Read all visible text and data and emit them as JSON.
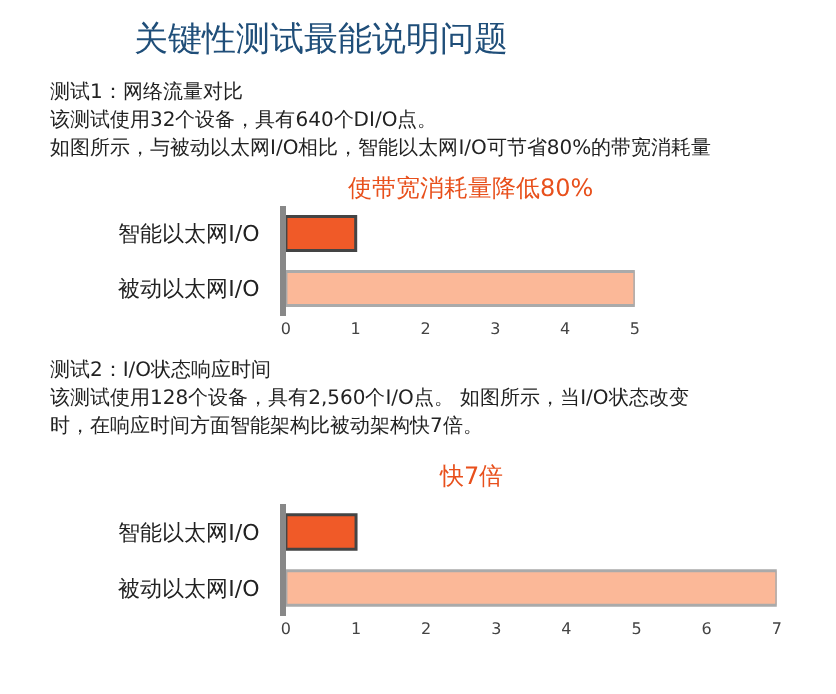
{
  "chart_data": [
    {
      "type": "bar",
      "orientation": "horizontal",
      "title": "使带宽消耗量降低80%",
      "annotations": [
        "关键性测试最能说明问题",
        "测试1：网络流量对比",
        "该测试使用32个设备，具有640个DI/O点。",
        "如图所示，与被动以太网I/O相比，智能以太网I/O可节省80%的带宽消耗量"
      ],
      "categories": [
        "智能以太网I/O",
        "被动以太网I/O"
      ],
      "values": [
        1,
        5
      ],
      "colors": [
        "#f05a28",
        "#fbb898"
      ],
      "xlim": [
        0,
        5
      ],
      "xticks": [
        0,
        1,
        2,
        3,
        4,
        5
      ]
    },
    {
      "type": "bar",
      "orientation": "horizontal",
      "title": "快7倍",
      "annotations": [
        "测试2：I/O状态响应时间",
        "该测试使用128个设备，具有2,560个I/O点。 如图所示，当I/O状态改变",
        "时，在响应时间方面智能架构比被动架构快7倍。"
      ],
      "categories": [
        "智能以太网I/O",
        "被动以太网I/O"
      ],
      "values": [
        1,
        7
      ],
      "colors": [
        "#f05a28",
        "#fbb898"
      ],
      "xlim": [
        0,
        7
      ],
      "xticks": [
        0,
        1,
        2,
        3,
        4,
        5,
        6,
        7
      ]
    }
  ]
}
